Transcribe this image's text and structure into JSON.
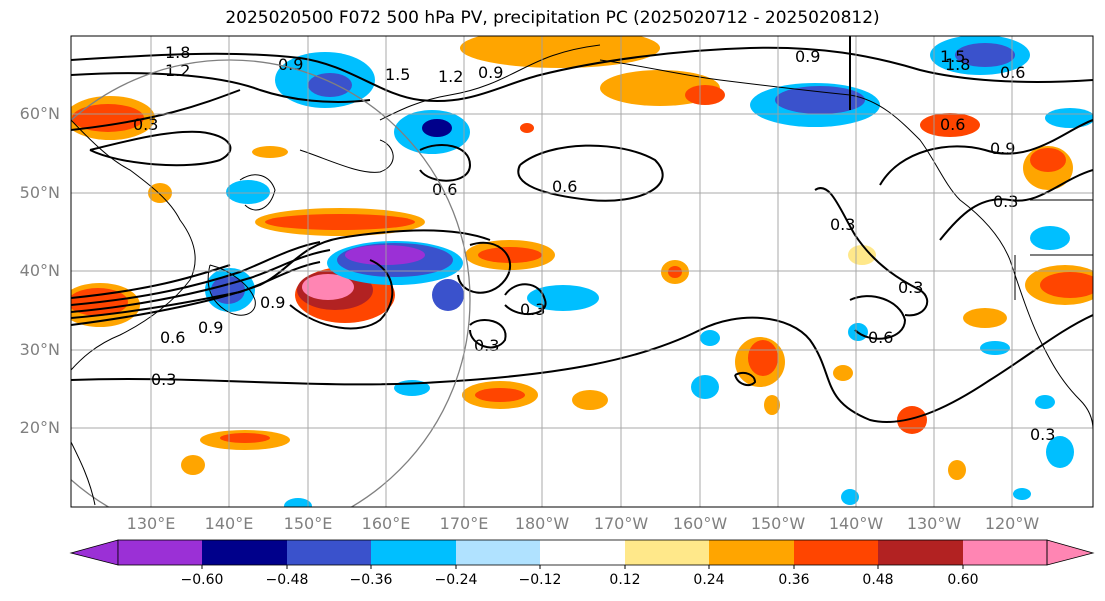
{
  "title": "2025020500 F072 500 hPa PV, precipitation PC (2025020712 - 2025020812)",
  "lat_labels": [
    "60°N",
    "50°N",
    "40°N",
    "30°N",
    "20°N"
  ],
  "lon_labels": [
    "130°E",
    "140°E",
    "150°E",
    "160°E",
    "170°E",
    "180°W",
    "170°W",
    "160°W",
    "150°W",
    "140°W",
    "130°W",
    "120°W"
  ],
  "colorbar": {
    "colors": [
      "#9b30d6",
      "#00008b",
      "#3a52cc",
      "#00bfff",
      "#b0e2ff",
      "#ffffff",
      "#ffe88a",
      "#ffa500",
      "#ff4500",
      "#b22222",
      "#ff85b3"
    ],
    "tick_labels": [
      "−0.60",
      "−0.48",
      "−0.36",
      "−0.24",
      "−0.12",
      "0.12",
      "0.24",
      "0.36",
      "0.48",
      "0.60"
    ]
  },
  "contour_labels": [
    "1.8",
    "1.2",
    "1.5",
    "0.9",
    "1.2",
    "0.9",
    "0.9",
    "1.8",
    "0.6",
    "0.3",
    "0.6",
    "0.6",
    "0.6",
    "0.9",
    "0.3",
    "0.9",
    "0.3",
    "0.3",
    "0.3",
    "0.3",
    "0.6",
    "0.9",
    "0.6",
    "1.5",
    "0.3",
    "0.3"
  ]
}
